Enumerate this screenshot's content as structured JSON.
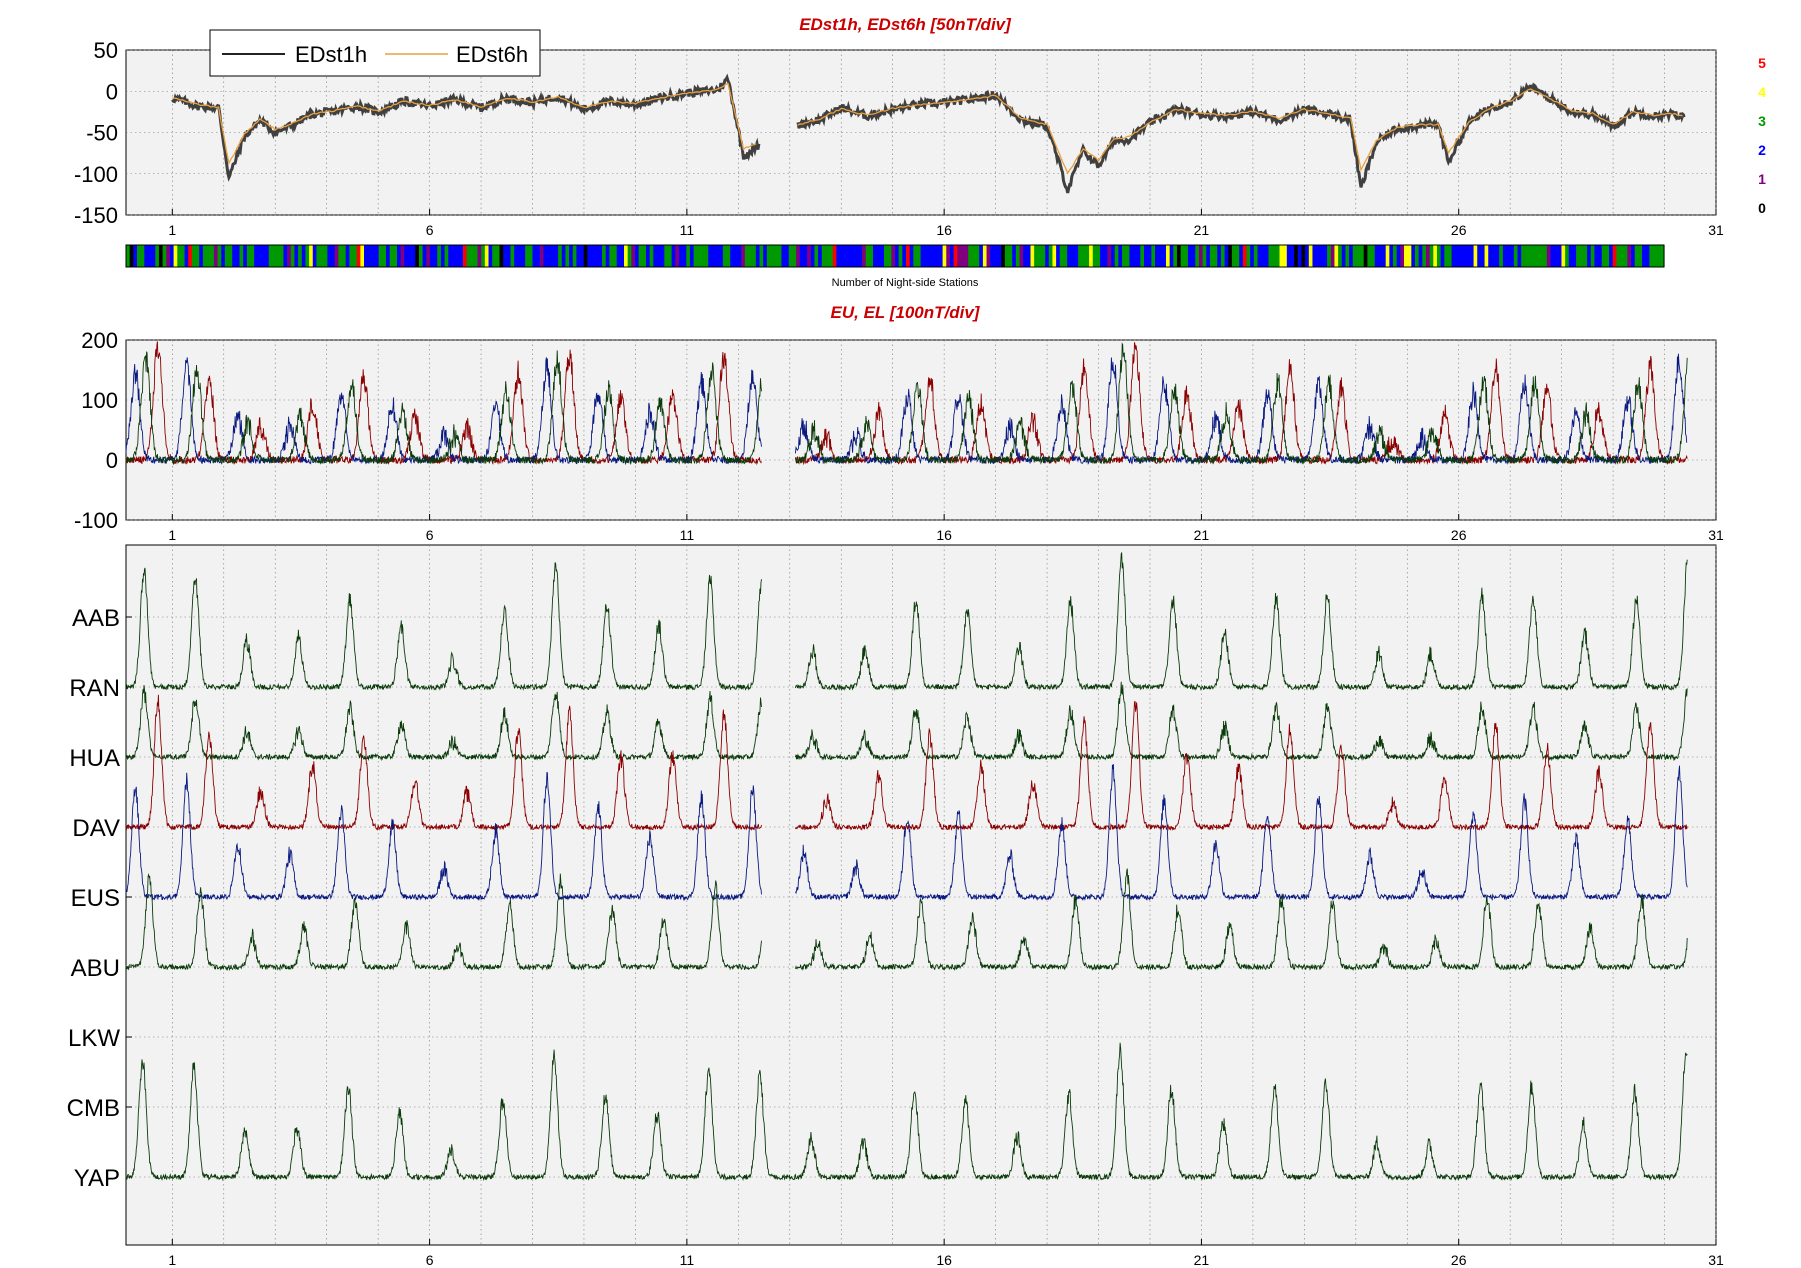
{
  "colors": {
    "title": "#cc0000",
    "axes_bg": "#f2f2f2",
    "edst1h": "#404040",
    "edst6h": "#e8a040",
    "red": "#8b0000",
    "green": "#0b3b0b",
    "blue": "#0a1a80"
  },
  "chart_data": [
    {
      "type": "line",
      "title": "EDst1h, EDst6h [50nT/div]",
      "xlim": [
        0.1,
        31
      ],
      "xticks": [
        "1",
        "6",
        "11",
        "16",
        "21",
        "26",
        "31"
      ],
      "ylim": [
        -150,
        50
      ],
      "yticks": [
        "50",
        "0",
        "-50",
        "-100",
        "-150"
      ],
      "grid": true,
      "legend": "top-left",
      "series": [
        {
          "name": "EDst1h",
          "x": [
            1,
            1.5,
            1.9,
            2.1,
            2.4,
            2.7,
            3,
            3.3,
            3.7,
            4.1,
            4.6,
            5,
            5.5,
            6,
            6.5,
            7,
            7.5,
            8,
            8.5,
            9,
            9.5,
            10,
            10.5,
            11,
            11.3,
            11.6,
            11.8,
            12.1,
            12.4,
            13.2,
            13.6,
            14,
            14.5,
            15,
            15.5,
            16,
            16.5,
            17,
            17.5,
            18,
            18.4,
            18.7,
            19,
            19.3,
            19.6,
            20,
            20.5,
            21,
            21.5,
            22,
            22.5,
            23,
            23.5,
            23.9,
            24.1,
            24.4,
            24.8,
            25.2,
            25.6,
            25.8,
            26.2,
            26.6,
            27,
            27.4,
            27.8,
            28.2,
            28.6,
            29,
            29.4,
            29.8,
            30.2,
            30.4
          ],
          "y": [
            -8,
            -18,
            -20,
            -105,
            -55,
            -35,
            -50,
            -42,
            -28,
            -25,
            -18,
            -25,
            -12,
            -18,
            -10,
            -20,
            -8,
            -14,
            -6,
            -22,
            -12,
            -16,
            -8,
            -2,
            0,
            2,
            15,
            -78,
            -66,
            -40,
            -34,
            -20,
            -30,
            -22,
            -16,
            -14,
            -10,
            -4,
            -35,
            -42,
            -120,
            -72,
            -90,
            -60,
            -58,
            -38,
            -22,
            -28,
            -30,
            -25,
            -35,
            -22,
            -28,
            -35,
            -118,
            -62,
            -45,
            -42,
            -40,
            -85,
            -38,
            -20,
            -12,
            5,
            -10,
            -25,
            -28,
            -42,
            -25,
            -30,
            -28,
            -32
          ]
        },
        {
          "name": "EDst6h",
          "x": [
            1,
            1.5,
            1.9,
            2.1,
            2.4,
            2.7,
            3,
            3.3,
            3.7,
            4.1,
            4.6,
            5,
            5.5,
            6,
            6.5,
            7,
            7.5,
            8,
            8.5,
            9,
            9.5,
            10,
            10.5,
            11,
            11.3,
            11.6,
            11.8,
            12.1,
            12.4,
            13.2,
            13.6,
            14,
            14.5,
            15,
            15.5,
            16,
            16.5,
            17,
            17.5,
            18,
            18.4,
            18.7,
            19,
            19.3,
            19.6,
            20,
            20.5,
            21,
            21.5,
            22,
            22.5,
            23,
            23.5,
            23.9,
            24.1,
            24.4,
            24.8,
            25.2,
            25.6,
            25.8,
            26.2,
            26.6,
            27,
            27.4,
            27.8,
            28.2,
            28.6,
            29,
            29.4,
            29.8,
            30.2,
            30.4
          ],
          "y": [
            -8,
            -16,
            -20,
            -88,
            -52,
            -34,
            -46,
            -40,
            -28,
            -24,
            -18,
            -24,
            -12,
            -17,
            -10,
            -19,
            -8,
            -13,
            -7,
            -20,
            -12,
            -15,
            -8,
            -2,
            0,
            2,
            10,
            -70,
            -62,
            -40,
            -33,
            -21,
            -29,
            -21,
            -16,
            -14,
            -10,
            -5,
            -33,
            -40,
            -100,
            -70,
            -84,
            -58,
            -55,
            -38,
            -22,
            -27,
            -29,
            -24,
            -33,
            -22,
            -27,
            -33,
            -95,
            -60,
            -44,
            -41,
            -40,
            -75,
            -37,
            -21,
            -12,
            3,
            -10,
            -24,
            -27,
            -40,
            -25,
            -29,
            -27,
            -31
          ]
        }
      ]
    },
    {
      "type": "heatmap",
      "xlabel": "Number of Night-side Stations",
      "levels": [
        "5",
        "4",
        "3",
        "2",
        "1",
        "0"
      ],
      "level_colors": {
        "5": "#ff0000",
        "4": "#ffff00",
        "3": "#009900",
        "2": "#0000ff",
        "1": "#800080",
        "0": "#000000"
      }
    },
    {
      "type": "line",
      "title": "EU, EL   [100nT/div]",
      "xlim": [
        0.1,
        31
      ],
      "xticks": [
        "1",
        "6",
        "11",
        "16",
        "21",
        "26",
        "31"
      ],
      "ylim": [
        -100,
        200
      ],
      "yticks": [
        "200",
        "100",
        "0",
        "-100"
      ],
      "grid": true,
      "series": [
        {
          "color": "red",
          "diurnal_amplitude": 150,
          "phase": 0.72
        },
        {
          "color": "blue",
          "diurnal_amplitude": 130,
          "phase": 0.28
        },
        {
          "color": "green",
          "diurnal_amplitude": 140,
          "phase": 0.48
        }
      ]
    },
    {
      "type": "line",
      "xlim": [
        0.1,
        31
      ],
      "xticks": [
        "1",
        "6",
        "11",
        "16",
        "21",
        "26",
        "31"
      ],
      "grid": true,
      "stations": [
        {
          "name": "AAB",
          "color": "green",
          "amplitude": 110,
          "phase": 0.45
        },
        {
          "name": "RAN",
          "color": "green",
          "amplitude": 60,
          "phase": 0.45
        },
        {
          "name": "HUA",
          "color": "red",
          "amplitude": 110,
          "phase": 0.72
        },
        {
          "name": "DAV",
          "color": "blue",
          "amplitude": 110,
          "phase": 0.28
        },
        {
          "name": "EUS",
          "color": "green",
          "amplitude": 80,
          "phase": 0.55
        },
        {
          "name": "ABU",
          "color": "green",
          "amplitude": 0,
          "phase": 0
        },
        {
          "name": "LKW",
          "color": "green",
          "amplitude": 0,
          "phase": 0
        },
        {
          "name": "CMB",
          "color": "green",
          "amplitude": 110,
          "phase": 0.42
        },
        {
          "name": "YAP",
          "color": "green",
          "amplitude": 0,
          "phase": 0
        }
      ]
    }
  ]
}
